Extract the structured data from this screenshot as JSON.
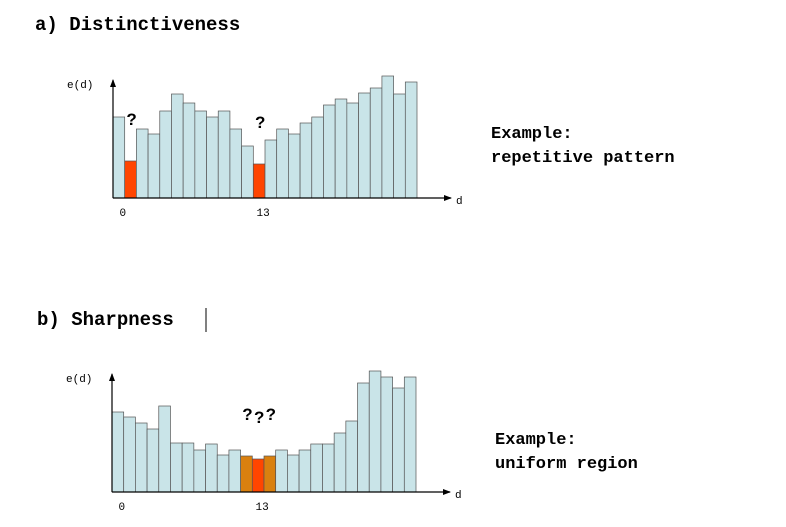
{
  "chart_data": [
    {
      "type": "bar",
      "title": "a) Distinctiveness",
      "y_label": "e(d)",
      "x_label": "d",
      "categories": [
        "0",
        null,
        null,
        null,
        null,
        null,
        null,
        null,
        null,
        null,
        null,
        null,
        "13",
        null,
        null,
        null,
        null,
        null,
        null,
        null,
        null,
        null,
        null,
        null,
        null,
        null
      ],
      "values": [
        81,
        37,
        69,
        64,
        87,
        104,
        95,
        87,
        81,
        87,
        69,
        52,
        34,
        58,
        69,
        64,
        75,
        81,
        93,
        99,
        95,
        105,
        110,
        122,
        104,
        116
      ],
      "colors": [
        "#c9e4e8",
        "#ff4500",
        "#c9e4e8",
        "#c9e4e8",
        "#c9e4e8",
        "#c9e4e8",
        "#c9e4e8",
        "#c9e4e8",
        "#c9e4e8",
        "#c9e4e8",
        "#c9e4e8",
        "#c9e4e8",
        "#ff4500",
        "#c9e4e8",
        "#c9e4e8",
        "#c9e4e8",
        "#c9e4e8",
        "#c9e4e8",
        "#c9e4e8",
        "#c9e4e8",
        "#c9e4e8",
        "#c9e4e8",
        "#c9e4e8",
        "#c9e4e8",
        "#c9e4e8",
        "#c9e4e8"
      ],
      "notes": [
        null,
        "?",
        null,
        null,
        null,
        null,
        null,
        null,
        null,
        null,
        null,
        null,
        "?",
        null,
        null,
        null,
        null,
        null,
        null,
        null,
        null,
        null,
        null,
        null,
        null,
        null
      ],
      "ylim": [
        0,
        130
      ],
      "annotation": [
        "Example:",
        "repetitive pattern"
      ]
    },
    {
      "type": "bar",
      "title": "b) Sharpness",
      "y_label": "e(d)",
      "x_label": "d",
      "categories": [
        "0",
        null,
        null,
        null,
        null,
        null,
        null,
        null,
        null,
        null,
        null,
        null,
        "13",
        null,
        null,
        null,
        null,
        null,
        null,
        null,
        null,
        null,
        null,
        null,
        null,
        null
      ],
      "values": [
        80,
        75,
        69,
        63,
        86,
        49,
        49,
        42,
        48,
        37,
        42,
        36,
        33,
        36,
        42,
        37,
        42,
        48,
        48,
        59,
        71,
        109,
        121,
        115,
        104,
        115
      ],
      "colors": [
        "#c9e4e8",
        "#c9e4e8",
        "#c9e4e8",
        "#c9e4e8",
        "#c9e4e8",
        "#c9e4e8",
        "#c9e4e8",
        "#c9e4e8",
        "#c9e4e8",
        "#c9e4e8",
        "#c9e4e8",
        "#d9800f",
        "#ff4500",
        "#d9800f",
        "#c9e4e8",
        "#c9e4e8",
        "#c9e4e8",
        "#c9e4e8",
        "#c9e4e8",
        "#c9e4e8",
        "#c9e4e8",
        "#c9e4e8",
        "#c9e4e8",
        "#c9e4e8",
        "#c9e4e8",
        "#c9e4e8"
      ],
      "notes": [
        null,
        null,
        null,
        null,
        null,
        null,
        null,
        null,
        null,
        null,
        null,
        "?",
        "?",
        "?",
        null,
        null,
        null,
        null,
        null,
        null,
        null,
        null,
        null,
        null,
        null,
        null
      ],
      "ylim": [
        0,
        130
      ],
      "annotation": [
        "Example:",
        "uniform region"
      ]
    }
  ]
}
